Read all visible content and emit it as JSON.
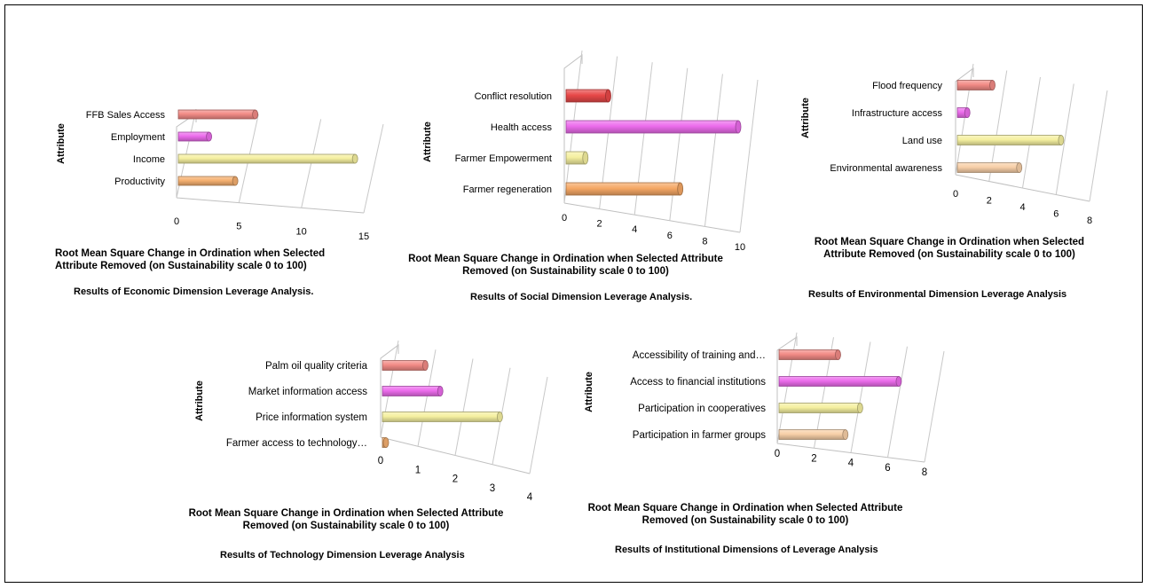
{
  "chart_data": [
    {
      "type": "bar",
      "orientation": "horizontal",
      "style": "3d-cylinder",
      "ylabel": "Attribute",
      "xlabel": "Root Mean Square Change in Ordination when Selected Attribute Removed (on Sustainability scale 0 to 100)",
      "caption": "Results of Economic Dimension Leverage Analysis.",
      "categories": [
        "FFB Sales Access",
        "Employment",
        "Income",
        "Productivity"
      ],
      "values": [
        6.3,
        2.6,
        14.3,
        4.7
      ],
      "xlim": [
        0,
        15
      ],
      "xticks": [
        0,
        5,
        10,
        15
      ],
      "colors": [
        "#f28b86",
        "#ec6cec",
        "#f5f0a0",
        "#f5b070"
      ],
      "grid": true
    },
    {
      "type": "bar",
      "orientation": "horizontal",
      "style": "3d-cylinder",
      "ylabel": "Attribute",
      "xlabel": "Root Mean Square Change in Ordination when Selected Attribute Removed (on Sustainability scale 0 to 100)",
      "caption": "Results of Social Dimension Leverage Analysis.",
      "categories": [
        "Conflict resolution",
        "Health access",
        "Farmer Empowerment",
        "Farmer regeneration"
      ],
      "values": [
        2.5,
        9.9,
        1.2,
        6.6
      ],
      "xlim": [
        0,
        10
      ],
      "xticks": [
        0,
        2,
        4,
        6,
        8,
        10
      ],
      "colors": [
        "#e84848",
        "#ec6cec",
        "#f5f0a0",
        "#f5a865"
      ],
      "grid": true
    },
    {
      "type": "bar",
      "orientation": "horizontal",
      "style": "3d-cylinder",
      "ylabel": "Attribute",
      "xlabel": "Root Mean Square Change in Ordination when Selected Attribute Removed (on Sustainability scale 0 to 100)",
      "caption": "Results of Environmental Dimension Leverage Analysis",
      "categories": [
        "Flood frequency",
        "Infrastructure access",
        "Land use",
        "Environmental awareness"
      ],
      "values": [
        2.2,
        0.7,
        6.3,
        3.8
      ],
      "xlim": [
        0,
        8
      ],
      "xticks": [
        0,
        2,
        4,
        6,
        8
      ],
      "colors": [
        "#f28b86",
        "#ec6cec",
        "#f5f0a0",
        "#f8d0a8"
      ],
      "grid": true
    },
    {
      "type": "bar",
      "orientation": "horizontal",
      "style": "3d-cylinder",
      "ylabel": "Attribute",
      "xlabel": "Root Mean Square Change in Ordination when Selected Attribute Removed (on Sustainability scale 0 to 100)",
      "caption": "Results of Technology Dimension Leverage Analysis",
      "categories": [
        "Palm oil quality criteria",
        "Market information access",
        "Price information system",
        "Farmer access to technology…"
      ],
      "values": [
        1.2,
        1.6,
        3.2,
        0.1
      ],
      "xlim": [
        0,
        4
      ],
      "xticks": [
        0,
        1,
        2,
        3,
        4
      ],
      "colors": [
        "#f28b86",
        "#ec6cec",
        "#f5f0a0",
        "#f5b070"
      ],
      "grid": true
    },
    {
      "type": "bar",
      "orientation": "horizontal",
      "style": "3d-cylinder",
      "ylabel": "Attribute",
      "xlabel": "Root Mean Square Change in Ordination when Selected Attribute Removed (on Sustainability scale 0 to 100)",
      "caption": "Results of Institutional Dimensions of Leverage Analysis",
      "categories": [
        "Accessibility of training and…",
        "Access to financial institutions",
        "Participation in cooperatives",
        "Participation in farmer groups"
      ],
      "values": [
        3.3,
        6.6,
        4.5,
        3.7
      ],
      "xlim": [
        0,
        8
      ],
      "xticks": [
        0,
        2,
        4,
        6,
        8
      ],
      "colors": [
        "#f28b86",
        "#ec6cec",
        "#f5f0a0",
        "#f8d0a8"
      ],
      "grid": true
    }
  ]
}
